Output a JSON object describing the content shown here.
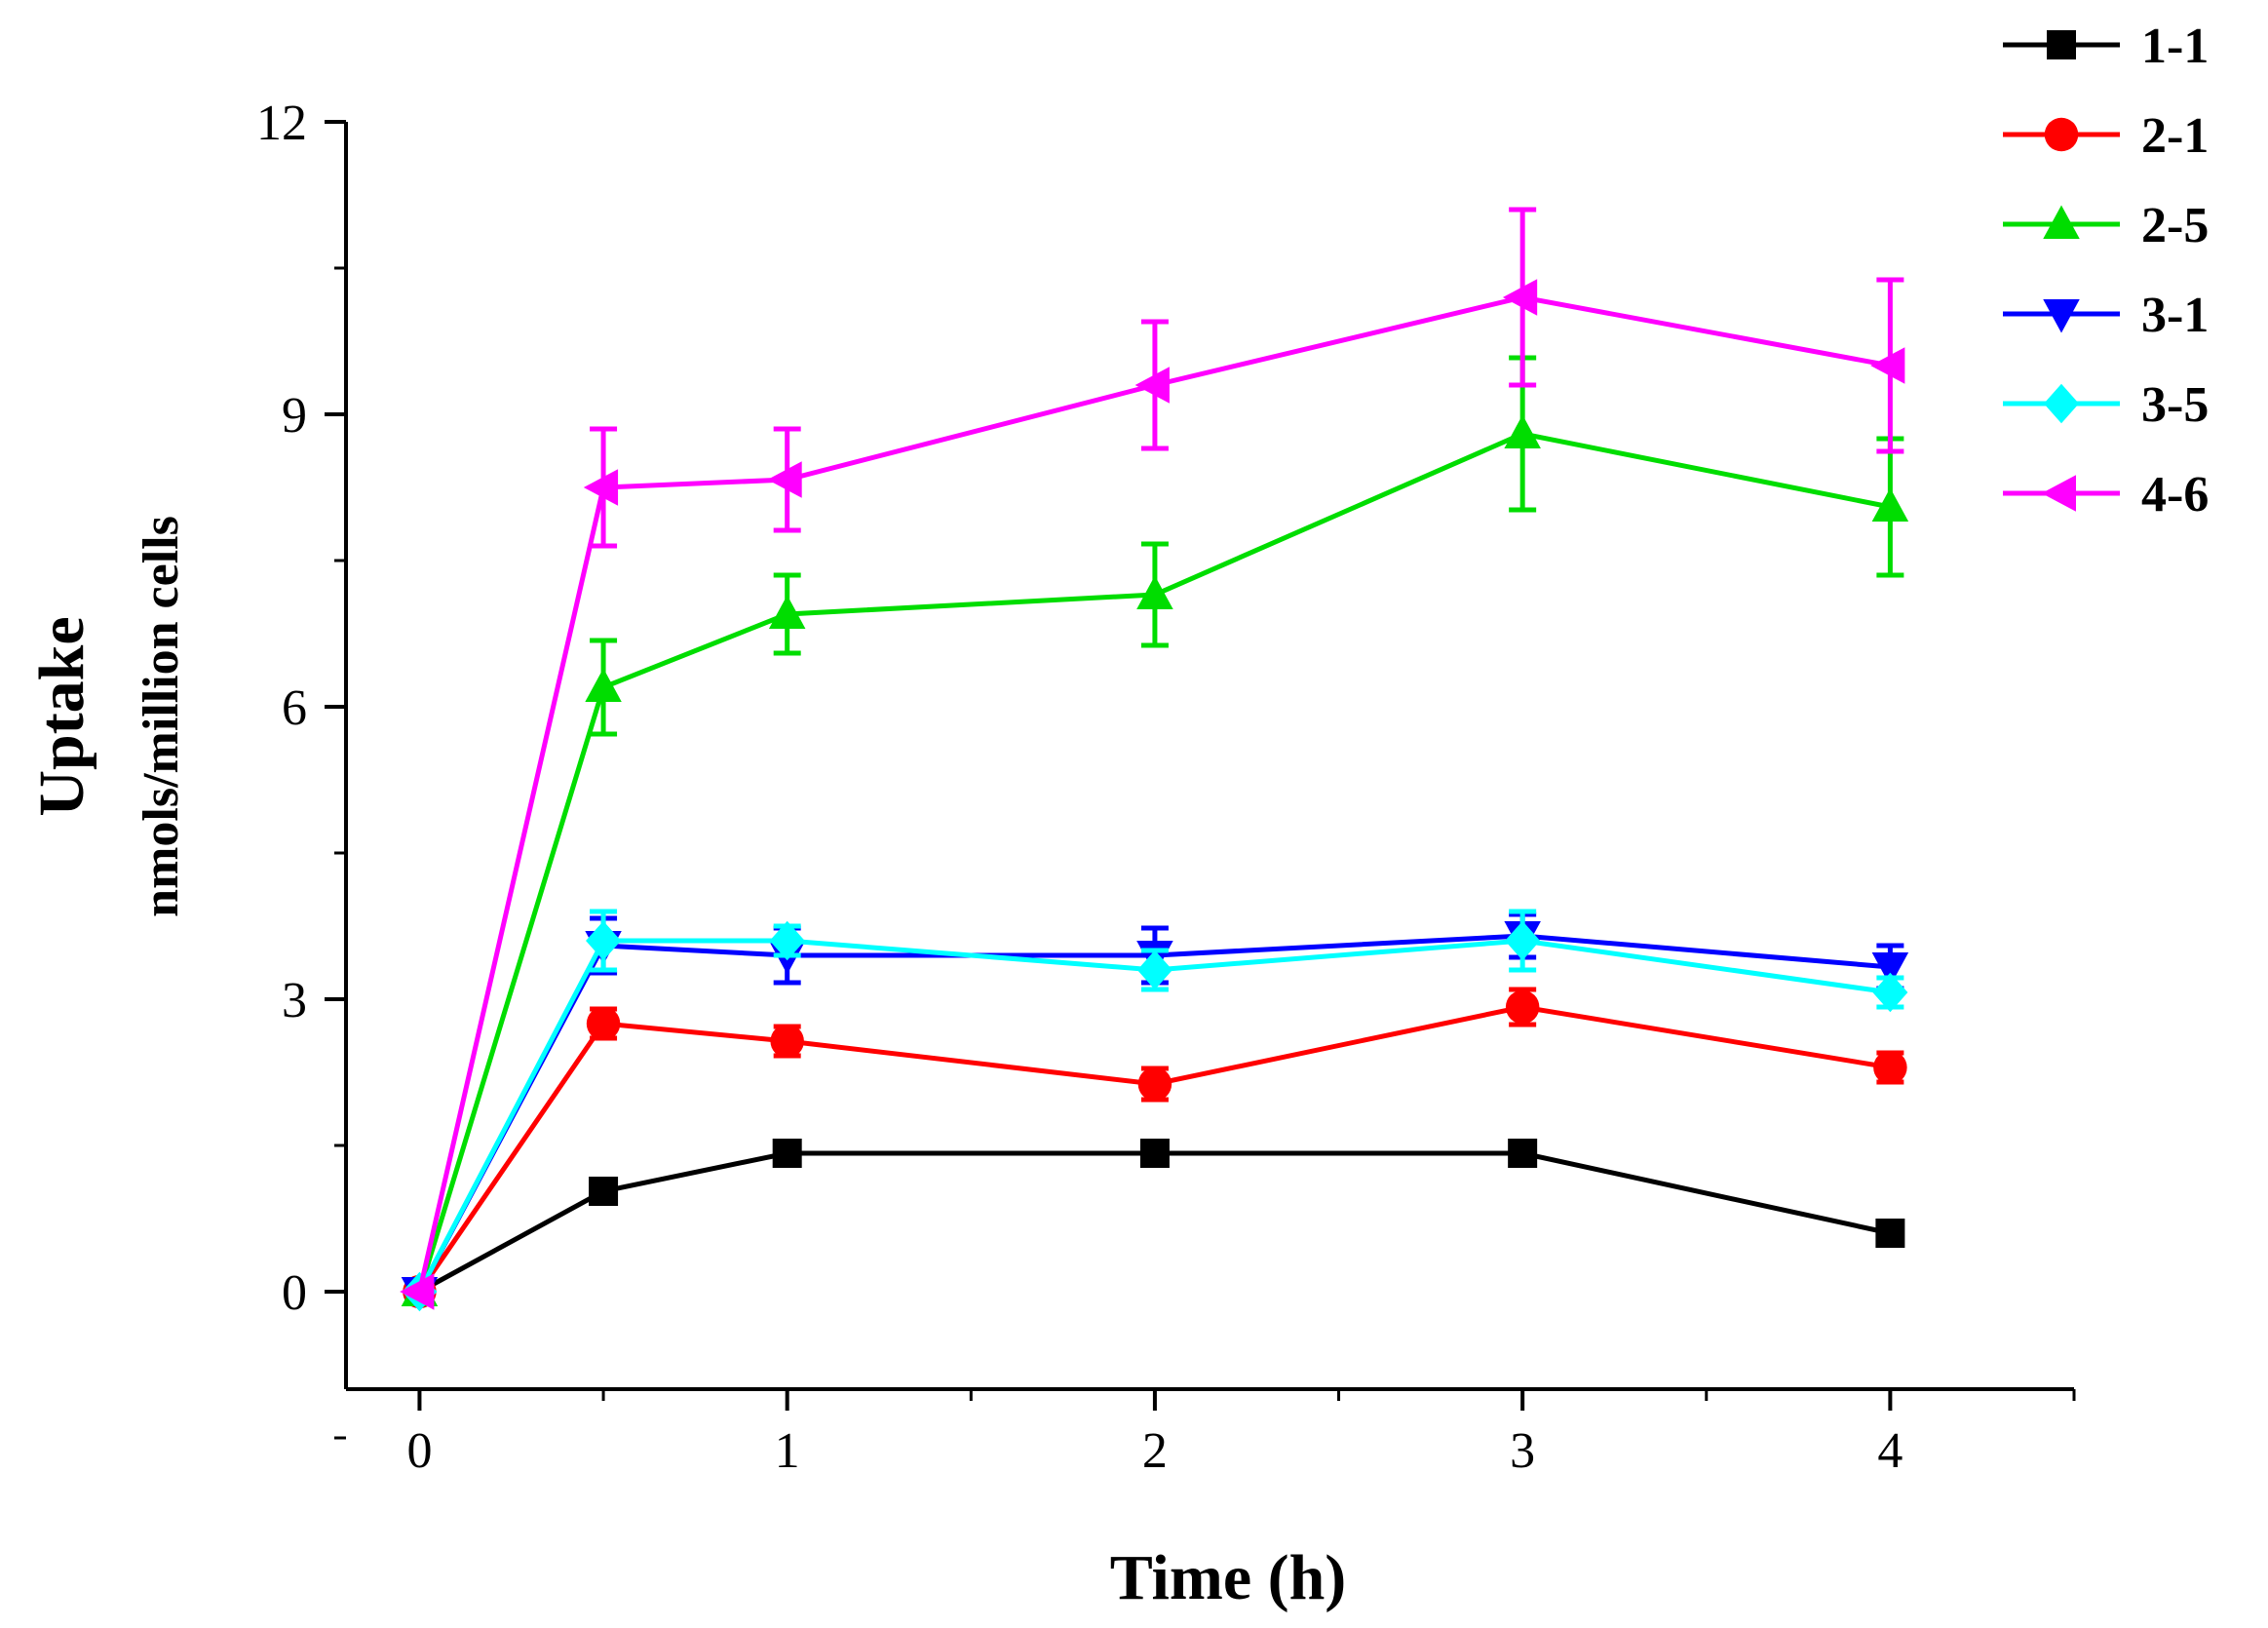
{
  "chart_data": {
    "type": "line",
    "xlabel": "Time (h)",
    "ylabel": "Uptake",
    "ylabel_sub": "nmols/million cells",
    "xlim": [
      -0.2,
      4.5
    ],
    "ylim": [
      -1,
      12
    ],
    "xticks": [
      0,
      1,
      2,
      3,
      4
    ],
    "yticks": [
      0,
      3,
      6,
      9,
      12
    ],
    "grid": false,
    "legend_position": "top-right",
    "x": [
      0,
      0.5,
      1,
      2,
      3,
      4
    ],
    "series": [
      {
        "name": "1-1",
        "color": "#000000",
        "marker": "square",
        "values": [
          0,
          1.03,
          1.42,
          1.42,
          1.42,
          0.6
        ],
        "errors": [
          0,
          0.06,
          0.08,
          0.08,
          0.08,
          0.07
        ]
      },
      {
        "name": "2-1",
        "color": "#ff0000",
        "marker": "circle",
        "values": [
          0,
          2.75,
          2.57,
          2.13,
          2.92,
          2.3
        ],
        "errors": [
          0,
          0.15,
          0.15,
          0.16,
          0.18,
          0.15
        ]
      },
      {
        "name": "2-5",
        "color": "#00dd00",
        "marker": "triangle-up",
        "values": [
          0,
          6.2,
          6.95,
          7.15,
          8.8,
          8.05
        ],
        "errors": [
          0,
          0.48,
          0.4,
          0.52,
          0.78,
          0.7
        ]
      },
      {
        "name": "3-1",
        "color": "#0000ff",
        "marker": "triangle-down",
        "values": [
          0,
          3.55,
          3.45,
          3.45,
          3.65,
          3.33
        ],
        "errors": [
          0,
          0.28,
          0.28,
          0.28,
          0.22,
          0.22
        ]
      },
      {
        "name": "3-5",
        "color": "#00ffff",
        "marker": "diamond",
        "values": [
          0,
          3.6,
          3.6,
          3.3,
          3.6,
          3.07
        ],
        "errors": [
          0,
          0.3,
          0.15,
          0.2,
          0.3,
          0.15
        ]
      },
      {
        "name": "4-6",
        "color": "#ff00ff",
        "marker": "triangle-left",
        "values": [
          0,
          8.25,
          8.33,
          9.3,
          10.2,
          9.5
        ],
        "errors": [
          0,
          0.6,
          0.52,
          0.65,
          0.9,
          0.88
        ]
      }
    ]
  }
}
